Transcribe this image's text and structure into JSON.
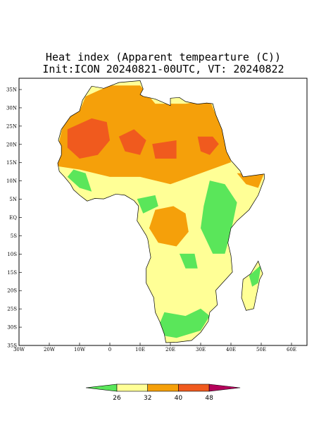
{
  "title": [
    "Heat index (Apparent tempearture (C))",
    "Init:ICON 20240821-00UTC, VT: 20240822"
  ],
  "lat_labels": [
    "35N",
    "30N",
    "25N",
    "20N",
    "15N",
    "10N",
    "5N",
    "EQ",
    "5S",
    "10S",
    "15S",
    "20S",
    "25S",
    "30S",
    "35S"
  ],
  "lon_labels": [
    "30W",
    "20W",
    "10W",
    "0",
    "10E",
    "20E",
    "30E",
    "40E",
    "50E",
    "60E"
  ],
  "colorbar": {
    "labels": [
      26,
      32,
      40,
      48
    ],
    "colors": [
      "#5ae65a",
      "#ffff96",
      "#f5a00a",
      "#f05a1e",
      "#b4005a"
    ]
  }
}
